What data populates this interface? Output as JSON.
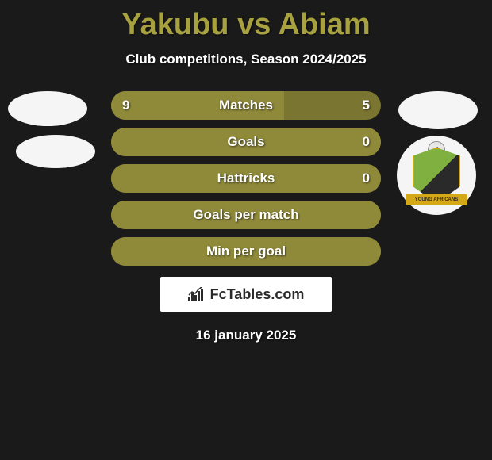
{
  "title": "Yakubu vs Abiam",
  "subtitle": "Club competitions, Season 2024/2025",
  "colors": {
    "background": "#1a1a1a",
    "title_color": "#a8a140",
    "bar_bg": "#7a7530",
    "bar_fill": "#8f893a",
    "text": "#ffffff"
  },
  "crest_left": {
    "bg": "#f5f5f5"
  },
  "crest_right_badge": {
    "banner_text": "YOUNG AFRICANS",
    "shield_colors": [
      "#7fb040",
      "#2a2a2a"
    ],
    "accent": "#d4a817"
  },
  "bars": [
    {
      "label": "Matches",
      "left_val": "9",
      "right_val": "5",
      "left_pct": 64,
      "right_pct": 36,
      "show_split": true
    },
    {
      "label": "Goals",
      "left_val": "",
      "right_val": "0",
      "left_pct": 100,
      "right_pct": 0,
      "show_split": false,
      "full_fill": true
    },
    {
      "label": "Hattricks",
      "left_val": "",
      "right_val": "0",
      "left_pct": 50,
      "right_pct": 50,
      "show_split": false,
      "full_fill": true
    },
    {
      "label": "Goals per match",
      "left_val": "",
      "right_val": "",
      "left_pct": 50,
      "right_pct": 50,
      "show_split": false,
      "full_fill": true
    },
    {
      "label": "Min per goal",
      "left_val": "",
      "right_val": "",
      "left_pct": 50,
      "right_pct": 50,
      "show_split": false,
      "full_fill": true
    }
  ],
  "footer_brand": "FcTables.com",
  "date": "16 january 2025"
}
